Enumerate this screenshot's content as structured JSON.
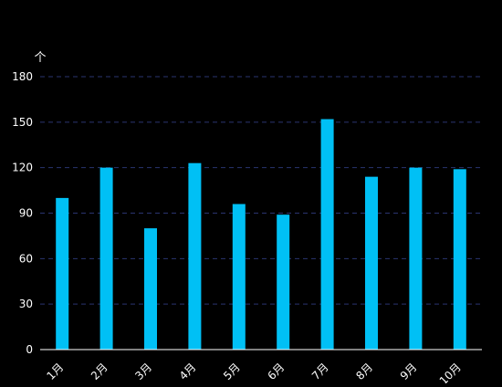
{
  "colors": {
    "background": "#000000",
    "bar": "#00c0f5",
    "grid": "#2a3470",
    "axis": "#ffffff",
    "text": "#ffffff"
  },
  "chart_data": {
    "type": "bar",
    "unit_label": "个",
    "categories": [
      "1月",
      "2月",
      "3月",
      "4月",
      "5月",
      "6月",
      "7月",
      "8月",
      "9月",
      "10月"
    ],
    "values": [
      100,
      120,
      80,
      123,
      96,
      89,
      152,
      114,
      120,
      119
    ],
    "ylim": [
      0,
      180
    ],
    "yticks": [
      0,
      30,
      60,
      90,
      120,
      150,
      180
    ],
    "grid": true,
    "grid_style": "dashed",
    "legend": "none"
  }
}
